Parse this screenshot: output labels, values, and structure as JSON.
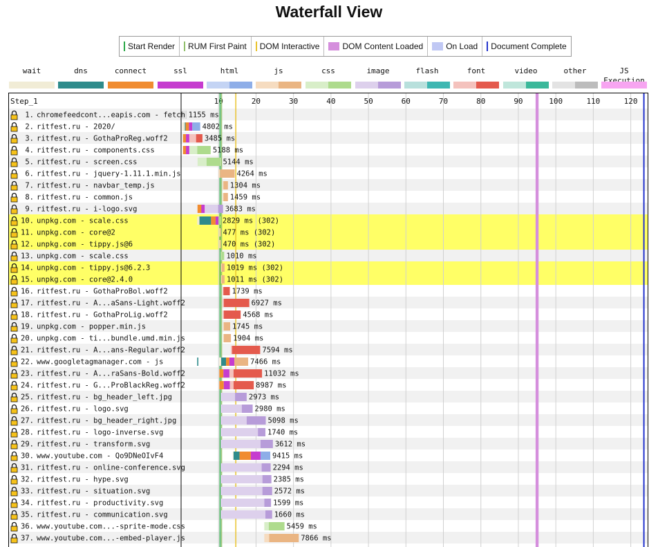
{
  "page_title": "Waterfall View",
  "legend": [
    {
      "name": "start-render",
      "label": "Start Render",
      "color": "#28a745",
      "style": "line"
    },
    {
      "name": "rum-first-paint",
      "label": "RUM First Paint",
      "color": "#8fbf6a",
      "style": "line"
    },
    {
      "name": "dom-interactive",
      "label": "DOM Interactive",
      "color": "#e8c22b",
      "style": "line"
    },
    {
      "name": "dom-content-loaded",
      "label": "DOM Content Loaded",
      "color": "#d58fdd",
      "style": "box"
    },
    {
      "name": "on-load",
      "label": "On Load",
      "color": "#c0c8f4",
      "style": "box"
    },
    {
      "name": "document-complete",
      "label": "Document Complete",
      "color": "#2233cc",
      "style": "line"
    }
  ],
  "request_types": [
    {
      "name": "wait",
      "label": "wait",
      "colors": [
        "#f1ecd6",
        "#f1ecd6"
      ]
    },
    {
      "name": "dns",
      "label": "dns",
      "colors": [
        "#2e8b8b",
        "#2e8b8b"
      ]
    },
    {
      "name": "connect",
      "label": "connect",
      "colors": [
        "#f08c30",
        "#f08c30"
      ]
    },
    {
      "name": "ssl",
      "label": "ssl",
      "colors": [
        "#c63ccf",
        "#c63ccf"
      ]
    },
    {
      "name": "html",
      "label": "html",
      "colors": [
        "#c4d4f4",
        "#8eaee8"
      ]
    },
    {
      "name": "js",
      "label": "js",
      "colors": [
        "#f6dcc0",
        "#eab583"
      ]
    },
    {
      "name": "css",
      "label": "css",
      "colors": [
        "#d8eec8",
        "#aedb8d"
      ]
    },
    {
      "name": "image",
      "label": "image",
      "colors": [
        "#ddd0ec",
        "#b79cd9"
      ]
    },
    {
      "name": "flash",
      "label": "flash",
      "colors": [
        "#b8e0dc",
        "#3eb7b2"
      ]
    },
    {
      "name": "font",
      "label": "font",
      "colors": [
        "#f4c2bd",
        "#e45a4d"
      ]
    },
    {
      "name": "video",
      "label": "video",
      "colors": [
        "#bfe6db",
        "#3ab89a"
      ]
    },
    {
      "name": "other",
      "label": "other",
      "colors": [
        "#e3e3e3",
        "#bcbcbc"
      ]
    },
    {
      "name": "js-execution",
      "label": "JS Execution",
      "colors": [
        "#f7a5f1",
        "#f7a5f1"
      ]
    }
  ],
  "step_label": "Step_1",
  "chart_data": {
    "type": "waterfall",
    "title": "Waterfall View",
    "x_ticks": [
      10,
      20,
      30,
      40,
      50,
      60,
      70,
      80,
      90,
      100,
      110,
      120
    ],
    "xlim": [
      0,
      124.5
    ],
    "markers": {
      "start_render": 10.4,
      "rum_first_paint": 10.8,
      "dom_interactive": 14.6,
      "dom_content_loaded": [
        94.6,
        95.4
      ],
      "document_complete": 123.5
    },
    "requests": [
      {
        "num": "1.",
        "label": "chromefeedcont...eapis.com - fetch",
        "type": "other",
        "start": 0.2,
        "ttfb": 1.3,
        "end": 1.4,
        "timing": "1155 ms"
      },
      {
        "num": "2.",
        "label": "ritfest.ru - 2020/",
        "type": "html",
        "start": 0.3,
        "dns": 1.0,
        "connect": 1.2,
        "ssl": 2.1,
        "ttfb": 3.0,
        "end": 5.1,
        "timing": "4802 ms"
      },
      {
        "num": "3.",
        "label": "ritfest.ru - GothaProReg.woff2",
        "type": "font",
        "start": 0.5,
        "connect": 1.3,
        "ssl": 2.2,
        "ttfb": 4.0,
        "end": 5.7,
        "timing": "3485 ms"
      },
      {
        "num": "4.",
        "label": "ritfest.ru - components.css",
        "type": "css",
        "start": 0.5,
        "connect": 1.3,
        "ssl": 2.2,
        "ttfb": 4.3,
        "end": 7.9,
        "timing": "5188 ms"
      },
      {
        "num": "5.",
        "label": "ritfest.ru - screen.css",
        "type": "css",
        "start": 4.4,
        "ttfb": 6.8,
        "end": 10.6,
        "timing": "5144 ms"
      },
      {
        "num": "6.",
        "label": "ritfest.ru - jquery-1.11.1.min.js",
        "type": "js",
        "start": 10.0,
        "ttfb": 10.4,
        "end": 14.3,
        "timing": "4264 ms"
      },
      {
        "num": "7.",
        "label": "ritfest.ru - navbar_temp.js",
        "type": "js",
        "start": 11.1,
        "ttfb": 11.3,
        "end": 12.5,
        "timing": "1304 ms"
      },
      {
        "num": "8.",
        "label": "ritfest.ru - common.js",
        "type": "js",
        "start": 11.1,
        "ttfb": 11.3,
        "end": 12.5,
        "timing": "1459 ms"
      },
      {
        "num": "9.",
        "label": "ritfest.ru - i-logo.svg",
        "type": "image",
        "start": 4.4,
        "connect": 5.4,
        "ssl": 6.3,
        "ttfb": 9.9,
        "end": 11.2,
        "timing": "3683 ms",
        "extra": [
          [
            4.4,
            6.3
          ]
        ]
      },
      {
        "num": "10.",
        "label": "unpkg.com - scale.css",
        "type": "css",
        "start": 4.3,
        "dns": 4.9,
        "connect": 8.0,
        "ssl": 9.2,
        "ttfb": 10.0,
        "end": 10.5,
        "timing": "2829 ms (302)",
        "highlight": true
      },
      {
        "num": "11.",
        "label": "unpkg.com - core@2",
        "type": "js",
        "start": 10.2,
        "ttfb": 10.4,
        "end": 10.6,
        "timing": "477 ms (302)",
        "highlight": true
      },
      {
        "num": "12.",
        "label": "unpkg.com - tippy.js@6",
        "type": "js",
        "start": 10.2,
        "ttfb": 10.4,
        "end": 10.6,
        "timing": "470 ms (302)",
        "highlight": true
      },
      {
        "num": "13.",
        "label": "unpkg.com - scale.css",
        "type": "css",
        "start": 10.5,
        "ttfb": 10.7,
        "end": 11.5,
        "timing": "1010 ms"
      },
      {
        "num": "14.",
        "label": "unpkg.com - tippy.js@6.2.3",
        "type": "js",
        "start": 10.6,
        "ttfb": 10.8,
        "end": 11.6,
        "timing": "1019 ms (302)",
        "highlight": true
      },
      {
        "num": "15.",
        "label": "unpkg.com - core@2.4.0",
        "type": "js",
        "start": 10.6,
        "ttfb": 10.8,
        "end": 11.6,
        "timing": "1011 ms (302)",
        "highlight": true
      },
      {
        "num": "16.",
        "label": "ritfest.ru - GothaProBol.woff2",
        "type": "font",
        "start": 11.1,
        "ttfb": 11.3,
        "end": 13.0,
        "timing": "1739 ms"
      },
      {
        "num": "17.",
        "label": "ritfest.ru - A...aSans-Light.woff2",
        "type": "font",
        "start": 11.1,
        "ttfb": 11.4,
        "end": 18.2,
        "timing": "6927 ms"
      },
      {
        "num": "18.",
        "label": "ritfest.ru - GothaProLig.woff2",
        "type": "font",
        "start": 11.1,
        "ttfb": 11.4,
        "end": 15.9,
        "timing": "4568 ms"
      },
      {
        "num": "19.",
        "label": "unpkg.com - popper.min.js",
        "type": "js",
        "start": 11.2,
        "ttfb": 11.4,
        "end": 13.1,
        "timing": "1745 ms"
      },
      {
        "num": "20.",
        "label": "unpkg.com - ti...bundle.umd.min.js",
        "type": "js",
        "start": 11.2,
        "ttfb": 11.4,
        "end": 13.3,
        "timing": "1904 ms"
      },
      {
        "num": "21.",
        "label": "ritfest.ru - A...ans-Regular.woff2",
        "type": "font",
        "start": 13.3,
        "ttfb": 13.6,
        "end": 21.1,
        "timing": "7594 ms"
      },
      {
        "num": "22.",
        "label": "www.googletagmanager.com - js",
        "type": "js",
        "start": 10.2,
        "dns": 10.7,
        "connect": 12.0,
        "ssl": 12.9,
        "ttfb": 14.2,
        "end": 17.9,
        "timing": "7466 ms",
        "pre": [
          4.3,
          4.6
        ]
      },
      {
        "num": "23.",
        "label": "ritfest.ru - A...raSans-Bold.woff2",
        "type": "font",
        "start": 10.2,
        "connect": 11.3,
        "ssl": 12.9,
        "ttfb": 14.0,
        "end": 21.6,
        "timing": "11032 ms"
      },
      {
        "num": "24.",
        "label": "ritfest.ru - G...ProBlackReg.woff2",
        "type": "font",
        "start": 10.2,
        "connect": 11.4,
        "ssl": 13.0,
        "ttfb": 14.0,
        "end": 19.4,
        "timing": "8987 ms"
      },
      {
        "num": "25.",
        "label": "ritfest.ru - bg_header_left.jpg",
        "type": "image",
        "start": 10.6,
        "ttfb": 14.4,
        "end": 17.5,
        "timing": "2973 ms"
      },
      {
        "num": "26.",
        "label": "ritfest.ru - logo.svg",
        "type": "image",
        "start": 10.6,
        "ttfb": 16.2,
        "end": 19.1,
        "timing": "2980 ms"
      },
      {
        "num": "27.",
        "label": "ritfest.ru - bg_header_right.jpg",
        "type": "image",
        "start": 10.6,
        "ttfb": 17.5,
        "end": 22.6,
        "timing": "5098 ms"
      },
      {
        "num": "28.",
        "label": "ritfest.ru - logo-inverse.svg",
        "type": "image",
        "start": 10.6,
        "ttfb": 20.5,
        "end": 22.5,
        "timing": "1740 ms"
      },
      {
        "num": "29.",
        "label": "ritfest.ru - transform.svg",
        "type": "image",
        "start": 10.6,
        "ttfb": 21.2,
        "end": 24.5,
        "timing": "3612 ms"
      },
      {
        "num": "30.",
        "label": "www.youtube.com - Qo9DNeOIvF4",
        "type": "html",
        "start": 13.8,
        "dns": 14.0,
        "connect": 15.6,
        "ssl": 18.6,
        "ttfb": 21.2,
        "end": 23.8,
        "timing": "9415 ms"
      },
      {
        "num": "31.",
        "label": "ritfest.ru - online-conference.svg",
        "type": "image",
        "start": 10.6,
        "ttfb": 21.5,
        "end": 23.9,
        "timing": "2294 ms"
      },
      {
        "num": "32.",
        "label": "ritfest.ru - hype.svg",
        "type": "image",
        "start": 10.6,
        "ttfb": 21.7,
        "end": 24.1,
        "timing": "2385 ms"
      },
      {
        "num": "33.",
        "label": "ritfest.ru - situation.svg",
        "type": "image",
        "start": 10.6,
        "ttfb": 21.7,
        "end": 24.3,
        "timing": "2572 ms"
      },
      {
        "num": "34.",
        "label": "ritfest.ru - productivity.svg",
        "type": "image",
        "start": 10.6,
        "ttfb": 22.2,
        "end": 24.0,
        "timing": "1599 ms"
      },
      {
        "num": "35.",
        "label": "ritfest.ru - communication.svg",
        "type": "image",
        "start": 10.6,
        "ttfb": 22.5,
        "end": 24.3,
        "timing": "1660 ms"
      },
      {
        "num": "36.",
        "label": "www.youtube.com...-sprite-mode.css",
        "type": "css",
        "start": 22.2,
        "ttfb": 23.4,
        "end": 27.6,
        "timing": "5459 ms"
      },
      {
        "num": "37.",
        "label": "www.youtube.com...-embed-player.js",
        "type": "js",
        "start": 22.2,
        "ttfb": 23.5,
        "end": 31.4,
        "timing": "7866 ms"
      }
    ]
  }
}
